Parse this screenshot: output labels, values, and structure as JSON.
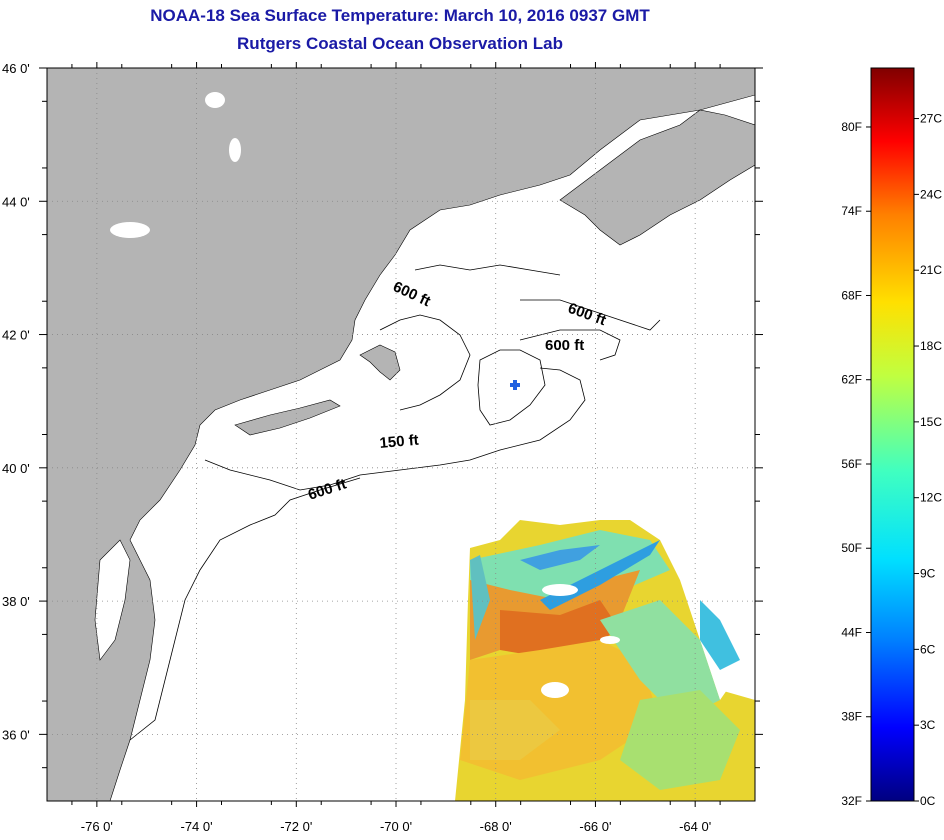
{
  "title": "NOAA-18 Sea Surface Temperature:  March 10, 2016 0937 GMT",
  "subtitle": "Rutgers Coastal Ocean Observation Lab",
  "map": {
    "lon_range": [
      -77,
      -62.8
    ],
    "lat_range": [
      35,
      46
    ],
    "lon_ticks": [
      {
        "value": -76,
        "label": "-76 0'"
      },
      {
        "value": -74,
        "label": "-74 0'"
      },
      {
        "value": -72,
        "label": "-72 0'"
      },
      {
        "value": -70,
        "label": "-70 0'"
      },
      {
        "value": -68,
        "label": "-68 0'"
      },
      {
        "value": -66,
        "label": "-66 0'"
      },
      {
        "value": -64,
        "label": "-64 0'"
      }
    ],
    "lat_ticks": [
      {
        "value": 46,
        "label": "46 0'"
      },
      {
        "value": 44,
        "label": "44 0'"
      },
      {
        "value": 42,
        "label": "42 0'"
      },
      {
        "value": 40,
        "label": "40 0'"
      },
      {
        "value": 38,
        "label": "38 0'"
      },
      {
        "value": 36,
        "label": "36 0'"
      }
    ],
    "grid": "dotted",
    "land_color": "#b4b4b4",
    "ocean_color": "#ffffff",
    "contour_labels": {
      "c1": "600 ft",
      "c2": "600 ft",
      "c3": "600 ft",
      "c4": "150 ft",
      "c5": "600 ft"
    }
  },
  "colorbar": {
    "fahrenheit": [
      "80F",
      "74F",
      "68F",
      "62F",
      "56F",
      "50F",
      "44F",
      "38F",
      "32F"
    ],
    "celsius": [
      "27C",
      "24C",
      "21C",
      "18C",
      "15C",
      "12C",
      "9C",
      "6C",
      "3C",
      "0C"
    ],
    "colors": [
      "#000080",
      "#0000ff",
      "#0080ff",
      "#00e0ff",
      "#40ffc0",
      "#c0ff40",
      "#ffe000",
      "#ff8000",
      "#ff0000",
      "#800000"
    ]
  }
}
